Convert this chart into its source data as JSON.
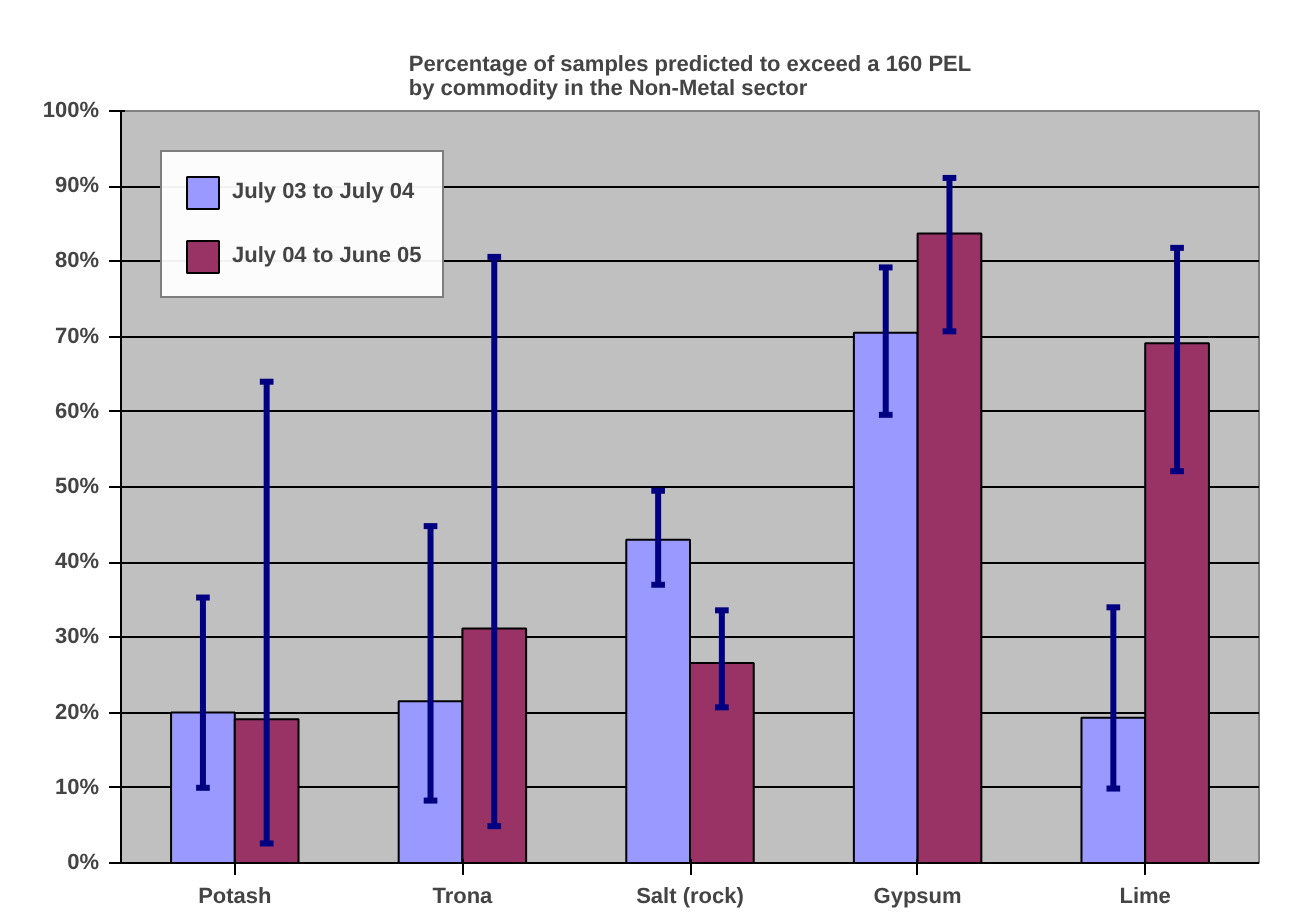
{
  "chart_data": {
    "type": "bar",
    "title": "Percentage of samples predicted to exceed a 160 PEL\nby commodity in the Non-Metal sector",
    "categories": [
      "Potash",
      "Trona",
      "Salt (rock)",
      "Gypsum",
      "Lime"
    ],
    "series": [
      {
        "name": "July 03 to July 04",
        "color": "#9999ff",
        "values": [
          20,
          21.5,
          43,
          70.5,
          19.3
        ],
        "errors": [
          [
            10,
            35.3
          ],
          [
            8.3,
            44.8
          ],
          [
            37,
            49.5
          ],
          [
            59.6,
            79.2
          ],
          [
            9.9,
            34
          ]
        ]
      },
      {
        "name": "July 04 to June 05",
        "color": "#993366",
        "values": [
          19.1,
          31.2,
          26.6,
          83.7,
          69.1
        ],
        "errors": [
          [
            2.6,
            64
          ],
          [
            4.9,
            80.6
          ],
          [
            20.7,
            33.6
          ],
          [
            70.7,
            91.1
          ],
          [
            52.1,
            81.8
          ]
        ]
      }
    ],
    "ylim": [
      0,
      100
    ],
    "yticks": [
      {
        "value": 0,
        "label": "0%"
      },
      {
        "value": 10,
        "label": "10%"
      },
      {
        "value": 20,
        "label": "20%"
      },
      {
        "value": 30,
        "label": "30%"
      },
      {
        "value": 40,
        "label": "40%"
      },
      {
        "value": 50,
        "label": "50%"
      },
      {
        "value": 60,
        "label": "60%"
      },
      {
        "value": 70,
        "label": "70%"
      },
      {
        "value": 80,
        "label": "80%"
      },
      {
        "value": 90,
        "label": "90%"
      },
      {
        "value": 100,
        "label": "100%"
      }
    ],
    "grid": "y",
    "legend": "top left"
  }
}
